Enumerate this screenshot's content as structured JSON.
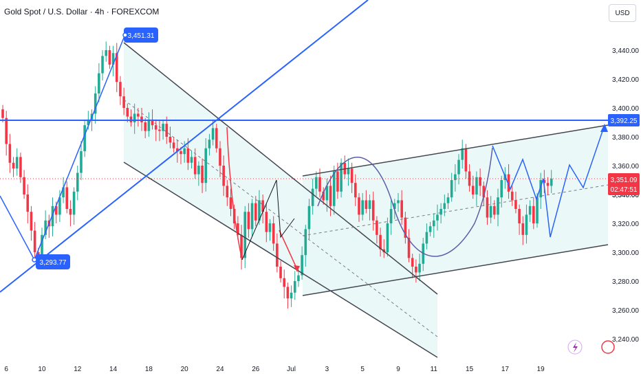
{
  "header": {
    "title": "Gold Spot / U.S. Dollar · 4h · FOREXCOM",
    "currency": "USD"
  },
  "colors": {
    "up": "#22ab94",
    "down": "#f23645",
    "blue": "#2962ff",
    "dark": "#434651",
    "channel_fill": "#e8f7f7",
    "curve": "#5b5ea6"
  },
  "chart_data": {
    "type": "candlestick",
    "title": "",
    "ylim": [
      3230,
      3462
    ],
    "y_ticks": [
      "3,440.00",
      "3,420.00",
      "3,400.00",
      "3,380.00",
      "3,360.00",
      "3,340.00",
      "3,320.00",
      "3,300.00",
      "3,280.00",
      "3,260.00",
      "3,240.00"
    ],
    "y_tick_values": [
      3440,
      3420,
      3400,
      3380,
      3360,
      3340,
      3320,
      3300,
      3280,
      3260,
      3240
    ],
    "x_ticks": [
      "6",
      "10",
      "12",
      "14",
      "18",
      "20",
      "24",
      "26",
      "Jul",
      "3",
      "5",
      "9",
      "11",
      "15",
      "17",
      "19"
    ],
    "x_tick_index": [
      1,
      11,
      21,
      31,
      41,
      51,
      61,
      71,
      81,
      91,
      101,
      111,
      121,
      131,
      141,
      151
    ],
    "close": [
      3393,
      3375,
      3362,
      3358,
      3366,
      3352,
      3340,
      3328,
      3315,
      3300,
      3296,
      3312,
      3322,
      3318,
      3332,
      3326,
      3338,
      3345,
      3330,
      3326,
      3342,
      3355,
      3370,
      3388,
      3392,
      3396,
      3410,
      3424,
      3436,
      3440,
      3430,
      3438,
      3418,
      3408,
      3400,
      3394,
      3390,
      3396,
      3394,
      3390,
      3384,
      3392,
      3388,
      3385,
      3384,
      3389,
      3380,
      3376,
      3372,
      3370,
      3368,
      3372,
      3362,
      3366,
      3354,
      3360,
      3348,
      3372,
      3378,
      3386,
      3372,
      3360,
      3346,
      3338,
      3330,
      3320,
      3312,
      3296,
      3328,
      3316,
      3334,
      3322,
      3336,
      3328,
      3314,
      3320,
      3306,
      3290,
      3282,
      3276,
      3268,
      3272,
      3280,
      3284,
      3298,
      3316,
      3332,
      3344,
      3352,
      3342,
      3336,
      3346,
      3332,
      3356,
      3342,
      3362,
      3354,
      3358,
      3348,
      3338,
      3326,
      3336,
      3330,
      3336,
      3322,
      3312,
      3302,
      3300,
      3320,
      3330,
      3334,
      3336,
      3324,
      3310,
      3296,
      3290,
      3286,
      3292,
      3306,
      3314,
      3318,
      3322,
      3326,
      3330,
      3334,
      3338,
      3350,
      3354,
      3364,
      3372,
      3356,
      3346,
      3340,
      3352,
      3346,
      3338,
      3324,
      3332,
      3326,
      3338,
      3350,
      3354,
      3342,
      3336,
      3330,
      3320,
      3312,
      3326,
      3332,
      3320,
      3338,
      3350,
      3348,
      3346,
      3351
    ],
    "annotations": {
      "high_label": "3,451.31",
      "low_label": "3,293.77",
      "resistance_label": "3,392.25",
      "current_price": "3,351.09",
      "countdown": "02:47:51",
      "hidden_price": "3,340.00"
    }
  }
}
